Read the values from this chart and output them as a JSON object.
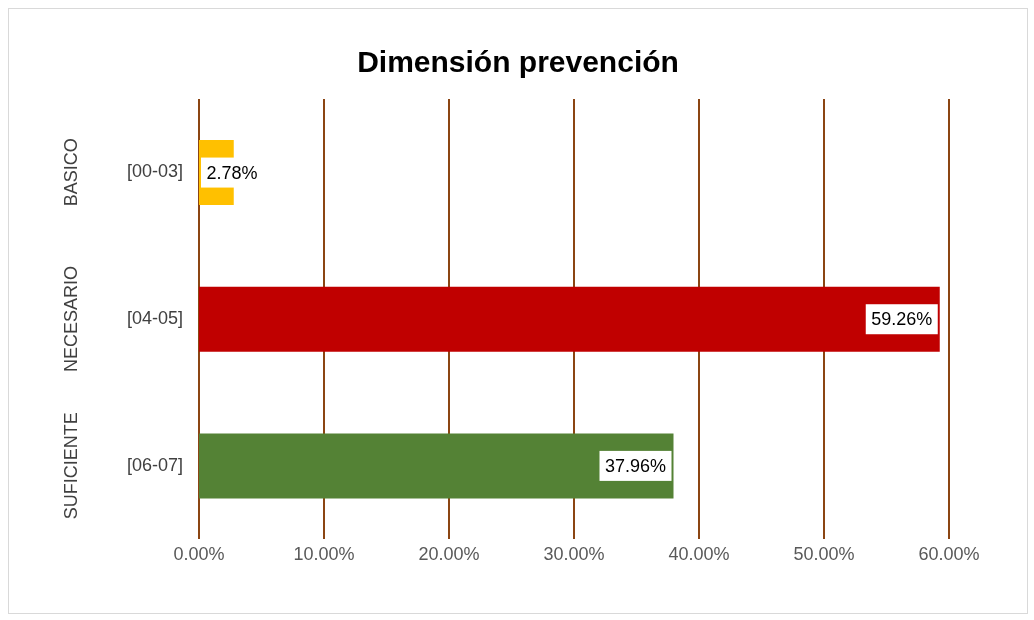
{
  "chart_data": {
    "type": "bar",
    "orientation": "horizontal",
    "title": "Dimensión prevención",
    "categories": [
      "[00-03]",
      "[04-05]",
      "[06-07]"
    ],
    "annotations": [
      "BASICO",
      "NECESARIO",
      "SUFICIENTE"
    ],
    "values": [
      2.78,
      59.26,
      37.96
    ],
    "colors": [
      "#ffc000",
      "#c00000",
      "#548235"
    ],
    "value_labels": [
      "2.78%",
      "59.26%",
      "37.96%"
    ],
    "xlim": [
      0,
      60
    ],
    "xticks": [
      {
        "value": 0,
        "label": "0.00%"
      },
      {
        "value": 10,
        "label": "10.00%"
      },
      {
        "value": 20,
        "label": "20.00%"
      },
      {
        "value": 30,
        "label": "30.00%"
      },
      {
        "value": 40,
        "label": "40.00%"
      },
      {
        "value": 50,
        "label": "50.00%"
      },
      {
        "value": 60,
        "label": "60.00%"
      }
    ],
    "grid": "x",
    "legend": false
  }
}
